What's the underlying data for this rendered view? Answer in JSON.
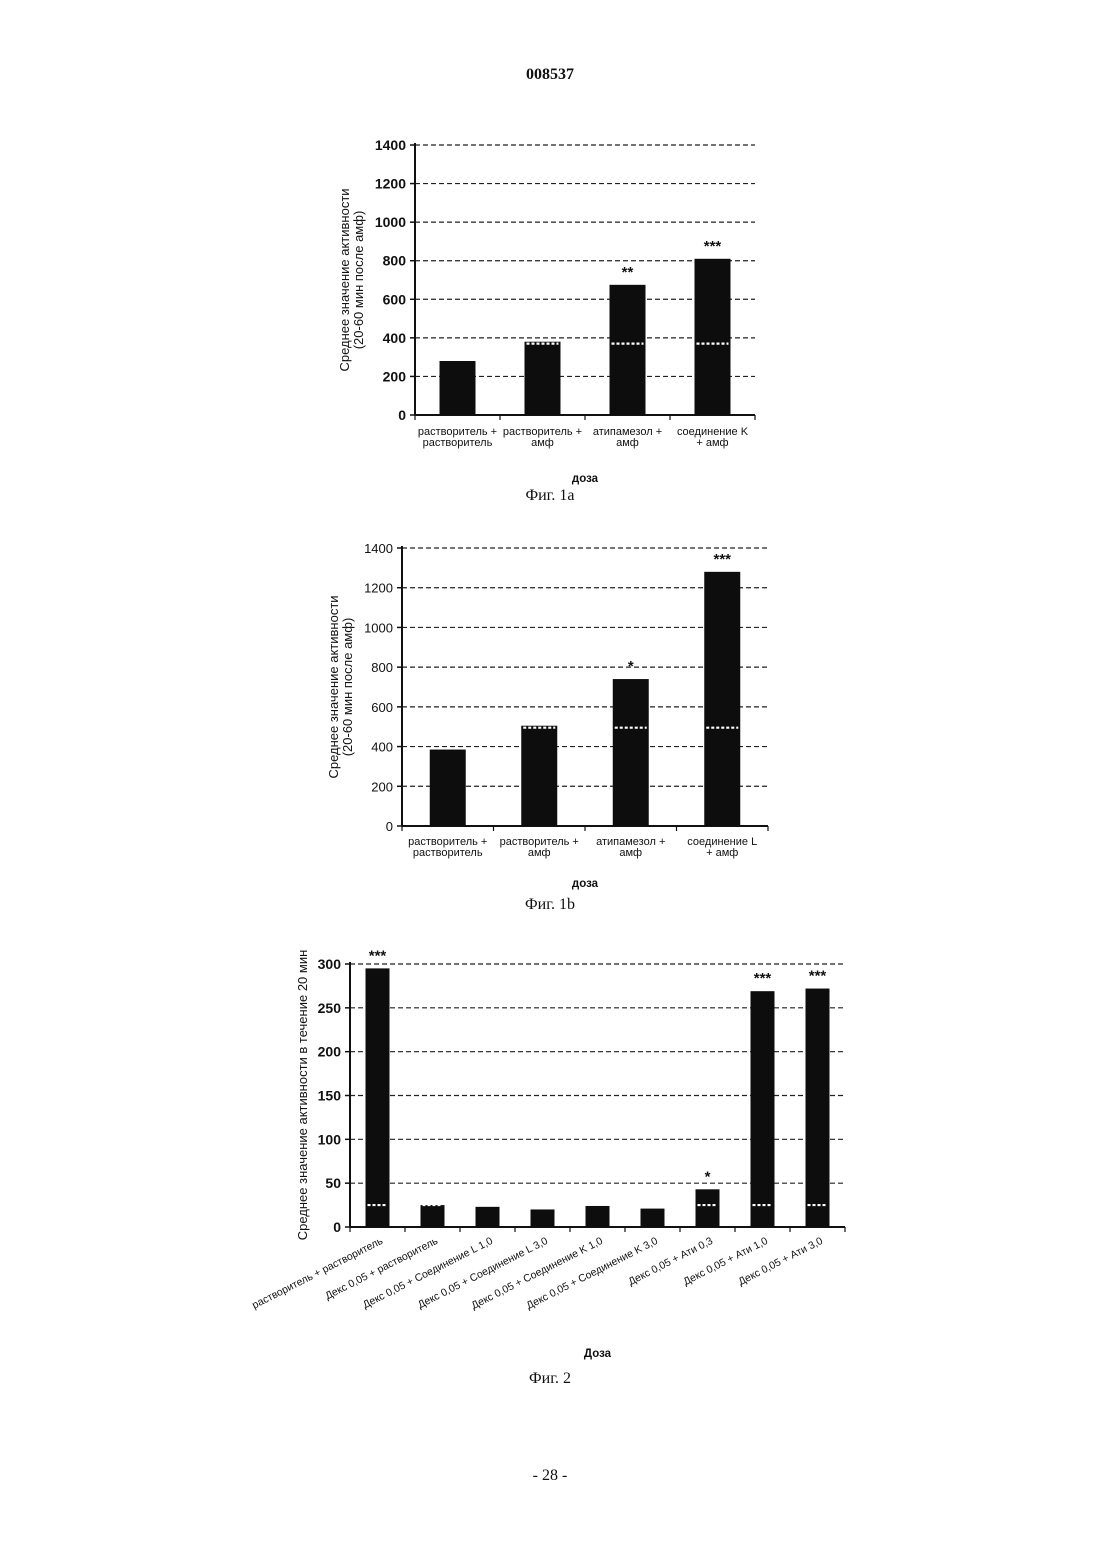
{
  "page": {
    "header": "008537",
    "footer": "- 28 -"
  },
  "chart_data": [
    {
      "id": "fig1a",
      "type": "bar",
      "caption": "Фиг. 1a",
      "ylabel_lines": [
        "Среднее значение активности",
        "(20-60 мин после амф)"
      ],
      "xlabel": "доза",
      "ylim": [
        0,
        1400
      ],
      "yticks": [
        0,
        200,
        400,
        600,
        800,
        1000,
        1200,
        1400
      ],
      "categories": [
        [
          "растворитель +",
          "растворитель"
        ],
        [
          "растворитель +",
          "амф"
        ],
        [
          "атипамезол +",
          "амф"
        ],
        [
          "соединение K",
          "+ амф"
        ]
      ],
      "values": [
        280,
        380,
        675,
        810
      ],
      "ref_line_values": [
        null,
        370,
        370,
        370
      ],
      "significance": [
        "",
        "",
        "**",
        "***"
      ],
      "grid": true
    },
    {
      "id": "fig1b",
      "type": "bar",
      "caption": "Фиг. 1b",
      "ylabel_lines": [
        "Среднее значение активности",
        "(20-60 мин после амф)"
      ],
      "xlabel": "доза",
      "ylim": [
        0,
        1400
      ],
      "yticks": [
        0,
        200,
        400,
        600,
        800,
        1000,
        1200,
        1400
      ],
      "categories": [
        [
          "растворитель +",
          "растворитель"
        ],
        [
          "растворитель +",
          "амф"
        ],
        [
          "атипамезол +",
          "амф"
        ],
        [
          "соединение L",
          "+ амф"
        ]
      ],
      "values": [
        385,
        505,
        740,
        1280
      ],
      "ref_line_values": [
        null,
        495,
        495,
        495
      ],
      "significance": [
        "",
        "",
        "*",
        "***"
      ],
      "grid": true
    },
    {
      "id": "fig2",
      "type": "bar",
      "caption": "Фиг. 2",
      "ylabel_lines": [
        "Среднее значение активности в течение 20 мин"
      ],
      "xlabel": "Доза",
      "ylim": [
        0,
        300
      ],
      "yticks": [
        0,
        50,
        100,
        150,
        200,
        250,
        300
      ],
      "categories": [
        "растворитель + растворитель",
        "Декс 0,05 + растворитель",
        "Декс 0,05 + Соединение L 1,0",
        "Декс 0,05 + Соединение L 3,0",
        "Декс 0,05 + Соединение K 1,0",
        "Декс 0,05 + Соединение K 3,0",
        "Декс 0,05 + Ати 0,3",
        "Декс 0,05 + Ати 1,0",
        "Декс 0,05 + Ати 3,0"
      ],
      "values": [
        295,
        25,
        23,
        20,
        24,
        21,
        43,
        269,
        272
      ],
      "ref_line_values": [
        25,
        25,
        null,
        null,
        null,
        null,
        25,
        25,
        25
      ],
      "significance": [
        "***",
        "",
        "",
        "",
        "",
        "",
        "*",
        "***",
        "***"
      ],
      "grid": true
    }
  ]
}
